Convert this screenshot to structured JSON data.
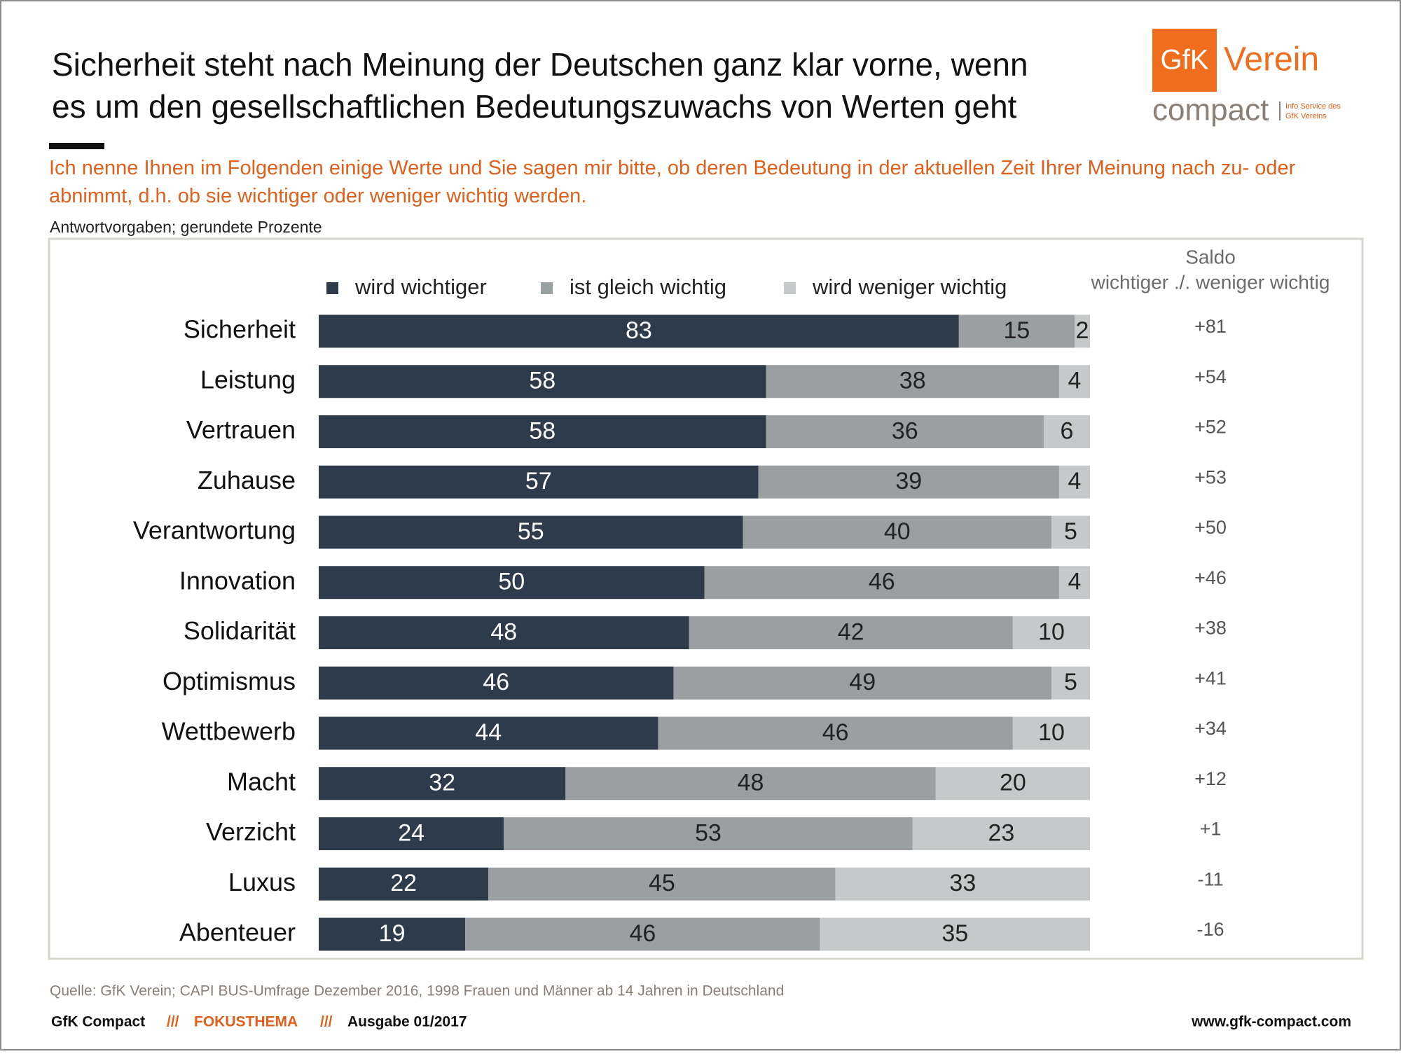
{
  "chart_data": {
    "type": "stacked-bar-horizontal",
    "title_lines": [
      "Sicherheit steht nach Meinung der Deutschen ganz klar vorne, wenn",
      "es um den  gesellschaftlichen Bedeutungszuwachs von Werten geht"
    ],
    "subtitle": "Ich nenne Ihnen im Folgenden einige Werte und Sie sagen mir bitte, ob deren Bedeutung in der aktuellen Zeit Ihrer Meinung nach zu- oder abnimmt, d.h. ob sie wichtiger oder weniger wichtig werden.",
    "note": "Antwortvorgaben; gerundete Prozente",
    "categories": [
      "Sicherheit",
      "Leistung",
      "Vertrauen",
      "Zuhause",
      "Verantwortung",
      "Innovation",
      "Solidarität",
      "Optimismus",
      "Wettbewerb",
      "Macht",
      "Verzicht",
      "Luxus",
      "Abenteuer"
    ],
    "xlim": [
      0,
      100
    ],
    "series": [
      {
        "name": "wird wichtiger",
        "color": "#2e3b4a",
        "values": [
          83,
          58,
          58,
          57,
          55,
          50,
          48,
          46,
          44,
          32,
          24,
          22,
          19
        ]
      },
      {
        "name": "ist gleich wichtig",
        "color": "#9a9fa2",
        "values": [
          15,
          38,
          36,
          39,
          40,
          46,
          42,
          49,
          46,
          48,
          53,
          45,
          46
        ]
      },
      {
        "name": "wird weniger wichtig",
        "color": "#c6c9ca",
        "values": [
          2,
          4,
          6,
          4,
          5,
          4,
          10,
          5,
          10,
          20,
          23,
          33,
          35
        ]
      }
    ],
    "saldo": {
      "title_lines": [
        "Saldo",
        "wichtiger ./. weniger wichtig"
      ],
      "values": [
        81,
        54,
        52,
        53,
        50,
        46,
        38,
        41,
        34,
        12,
        1,
        -11,
        -16
      ],
      "value_labels": [
        "+81",
        "+54",
        "+52",
        "+53",
        "+50",
        "+46",
        "+38",
        "+41",
        "+34",
        "+12",
        "+1",
        "-11",
        "-16"
      ]
    }
  },
  "logo": {
    "mark": "GfK",
    "name": "Verein",
    "product": "compact",
    "tagline_lines": [
      "Info Service des",
      "GfK Vereins"
    ]
  },
  "source": "Quelle: GfK Verein; CAPI BUS-Umfrage Dezember 2016, 1998 Frauen und Männer ab 14 Jahren in Deutschland",
  "footer": {
    "brand": "GfK Compact",
    "sep1": "///",
    "topic": "FOKUSTHEMA",
    "sep2": "///",
    "issue": "Ausgabe 01/2017",
    "url": "www.gfk-compact.com"
  }
}
